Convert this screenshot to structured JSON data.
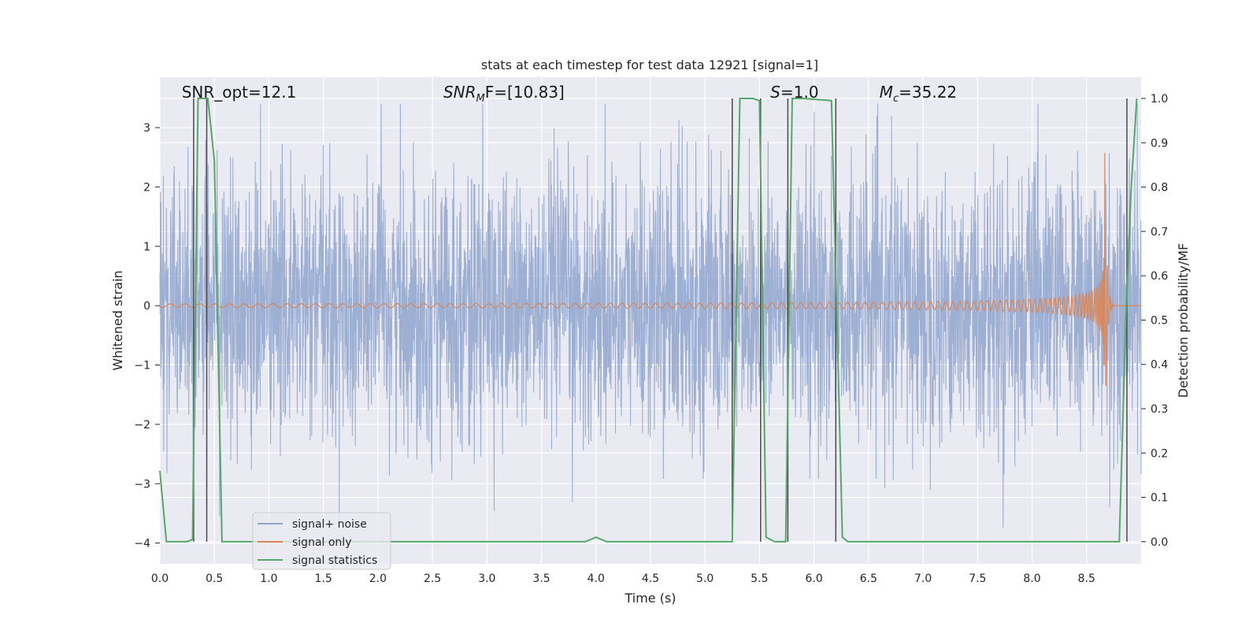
{
  "chart_data": {
    "type": "line",
    "title": "stats at each timestep for test data 12921 [signal=1]",
    "xlabel": "Time (s)",
    "ylabel_left": "Whitened strain",
    "ylabel_right": "Detection probability/MF",
    "xlim": [
      0.0,
      9.0
    ],
    "ylim_left": [
      -4.35,
      3.85
    ],
    "ylim_right": [
      -0.05,
      1.048
    ],
    "x_ticks": [
      "0.0",
      "0.5",
      "1.0",
      "1.5",
      "2.0",
      "2.5",
      "3.0",
      "3.5",
      "4.0",
      "4.5",
      "5.0",
      "5.5",
      "6.0",
      "6.5",
      "7.0",
      "7.5",
      "8.0",
      "8.5"
    ],
    "y_left_ticks": [
      "3",
      "2",
      "1",
      "0",
      "−1",
      "−2",
      "−3",
      "−4"
    ],
    "y_right_ticks": [
      "1.0",
      "0.9",
      "0.8",
      "0.7",
      "0.6",
      "0.5",
      "0.4",
      "0.3",
      "0.2",
      "0.1",
      "0.0"
    ],
    "grid": true,
    "legend_position": "lower-left",
    "annotations": [
      {
        "prefix": "SNR_opt=12.1",
        "sub": "",
        "suffix": "",
        "x": 0.2
      },
      {
        "prefix": "SNR",
        "sub": "M",
        "suffix": "F=[10.83]",
        "x": 2.6
      },
      {
        "prefix": "S",
        "sub": "",
        "suffix": "=1.0",
        "x": 5.6
      },
      {
        "prefix": "M",
        "sub": "c",
        "suffix": "=35.22",
        "x": 6.6
      }
    ],
    "vertical_markers": [
      0.31,
      0.43,
      5.25,
      5.51,
      5.76,
      6.2,
      8.87
    ],
    "series": [
      {
        "name": "signal+ noise",
        "axis": "left",
        "color": "#8fa4cc",
        "kind": "noise",
        "samples": 3600,
        "sigma": 1.1,
        "envelope_max": 3.4
      },
      {
        "name": "signal only",
        "axis": "left",
        "color": "#dd8452",
        "kind": "chirp",
        "t_merge": 8.67,
        "max_amplitude": 2.8
      },
      {
        "name": "signal statistics",
        "axis": "right",
        "color": "#55a868",
        "kind": "line",
        "x": [
          0.0,
          0.06,
          0.25,
          0.3,
          0.35,
          0.38,
          0.44,
          0.5,
          0.57,
          3.9,
          4.0,
          4.1,
          5.25,
          5.32,
          5.44,
          5.5,
          5.56,
          5.64,
          5.74,
          5.8,
          5.9,
          6.16,
          6.26,
          6.31,
          8.8,
          8.86,
          8.91,
          8.96
        ],
        "y": [
          0.16,
          0.0,
          0.0,
          0.005,
          1.0,
          1.0,
          1.0,
          0.86,
          0.0,
          0.0,
          0.01,
          0.0,
          0.0,
          1.0,
          1.0,
          0.995,
          0.01,
          0.0,
          0.0,
          1.0,
          1.0,
          0.995,
          0.01,
          0.0,
          0.0,
          0.5,
          0.8,
          1.0
        ]
      }
    ]
  }
}
